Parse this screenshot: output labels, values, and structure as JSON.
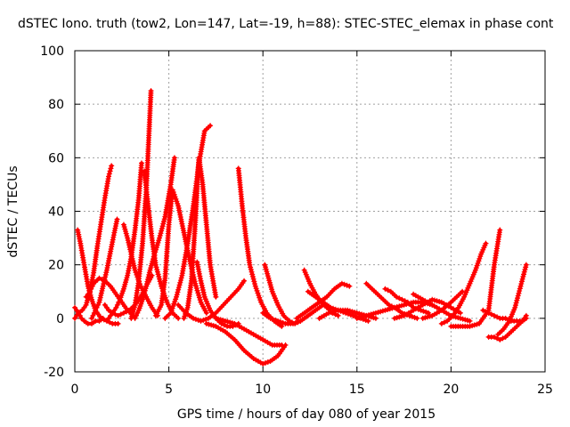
{
  "chart_data": {
    "type": "scatter",
    "title": "dSTEC Iono. truth (tow2, Lon=147, Lat=-19, h=88): STEC-STEC_elemax in phase cont",
    "xlabel": "GPS time / hours of day 080 of year 2015",
    "ylabel": "dSTEC  / TECUs",
    "xlim": [
      0,
      25
    ],
    "ylim": [
      -20,
      100
    ],
    "xticks": [
      0,
      5,
      10,
      15,
      20,
      25
    ],
    "yticks": [
      -20,
      0,
      20,
      40,
      60,
      80,
      100
    ],
    "grid": true,
    "legend": "none",
    "marker": "+",
    "color": "#ff0000",
    "series": [
      {
        "x": [
          0.0,
          0.1,
          0.2,
          0.35,
          0.5,
          0.7,
          0.9,
          1.1,
          1.3,
          1.5
        ],
        "y": [
          4,
          3,
          2,
          0,
          -1,
          -2,
          -2,
          -1,
          -1,
          0
        ]
      },
      {
        "x": [
          0.15,
          0.3,
          0.5,
          0.7,
          0.9,
          1.1,
          1.4,
          1.7,
          2.0,
          2.3
        ],
        "y": [
          33,
          28,
          20,
          12,
          7,
          3,
          0,
          -1,
          -2,
          -2
        ]
      },
      {
        "x": [
          0.0,
          0.2,
          0.4,
          0.6,
          0.8,
          1.0,
          1.2,
          1.4,
          1.6,
          1.8,
          1.95
        ],
        "y": [
          0,
          2,
          3,
          5,
          10,
          17,
          27,
          36,
          45,
          53,
          57
        ]
      },
      {
        "x": [
          0.6,
          0.8,
          1.0,
          1.3,
          1.6,
          1.9,
          2.2,
          2.5,
          2.8,
          3.1
        ],
        "y": [
          8,
          10,
          13,
          15,
          14,
          12,
          9,
          6,
          3,
          1
        ]
      },
      {
        "x": [
          0.9,
          1.1,
          1.3,
          1.5,
          1.7,
          1.9,
          2.1,
          2.25
        ],
        "y": [
          0,
          3,
          6,
          12,
          18,
          25,
          32,
          37
        ]
      },
      {
        "x": [
          1.6,
          1.8,
          2.0,
          2.3,
          2.6,
          2.9,
          3.2,
          3.5,
          3.8,
          4.1
        ],
        "y": [
          5,
          3,
          2,
          1,
          2,
          3,
          5,
          8,
          12,
          16
        ]
      },
      {
        "x": [
          1.8,
          2.0,
          2.2,
          2.4,
          2.6,
          2.8,
          3.0,
          3.2,
          3.4,
          3.55
        ],
        "y": [
          0,
          2,
          4,
          7,
          11,
          16,
          23,
          33,
          45,
          58
        ]
      },
      {
        "x": [
          2.6,
          2.8,
          3.0,
          3.2,
          3.5,
          3.8,
          4.1,
          4.4
        ],
        "y": [
          35,
          30,
          24,
          18,
          12,
          8,
          4,
          1
        ]
      },
      {
        "x": [
          3.0,
          3.2,
          3.4,
          3.6,
          3.8,
          3.95,
          4.05
        ],
        "y": [
          0,
          5,
          14,
          28,
          48,
          70,
          85
        ]
      },
      {
        "x": [
          3.2,
          3.4,
          3.6,
          3.8,
          4.0,
          4.2,
          4.5,
          4.8,
          5.1,
          5.3
        ],
        "y": [
          0,
          3,
          7,
          12,
          18,
          23,
          30,
          38,
          50,
          60
        ]
      },
      {
        "x": [
          3.7,
          3.9,
          4.1,
          4.3,
          4.6,
          4.9,
          5.2,
          5.5
        ],
        "y": [
          55,
          42,
          30,
          20,
          12,
          6,
          2,
          0
        ]
      },
      {
        "x": [
          4.3,
          4.6,
          4.8,
          5.0,
          5.2,
          5.5,
          5.8,
          6.1,
          6.4,
          6.7,
          7.0
        ],
        "y": [
          1,
          5,
          15,
          35,
          48,
          42,
          32,
          22,
          13,
          6,
          2
        ]
      },
      {
        "x": [
          4.8,
          5.1,
          5.4,
          5.7,
          6.0,
          6.3,
          6.6,
          6.9,
          7.2
        ],
        "y": [
          0,
          2,
          8,
          16,
          28,
          42,
          58,
          70,
          72
        ]
      },
      {
        "x": [
          5.8,
          6.0,
          6.2,
          6.4,
          6.6,
          6.8,
          7.0,
          7.2,
          7.5
        ],
        "y": [
          0,
          4,
          14,
          35,
          60,
          50,
          35,
          20,
          8
        ]
      },
      {
        "x": [
          6.5,
          6.7,
          6.9,
          7.2,
          7.5,
          7.8,
          8.1,
          8.4,
          8.7
        ],
        "y": [
          21,
          14,
          8,
          3,
          0,
          -2,
          -3,
          -3,
          -2
        ]
      },
      {
        "x": [
          5.5,
          5.9,
          6.3,
          6.7,
          7.1,
          7.5,
          7.9,
          8.3,
          8.7,
          9.0
        ],
        "y": [
          5,
          2,
          0,
          -1,
          0,
          2,
          5,
          8,
          11,
          14
        ]
      },
      {
        "x": [
          8.7,
          8.9,
          9.1,
          9.3,
          9.6,
          9.9,
          10.2,
          10.6,
          11.0
        ],
        "y": [
          56,
          42,
          30,
          20,
          12,
          6,
          2,
          -1,
          -3
        ]
      },
      {
        "x": [
          7.0,
          7.5,
          8.0,
          8.5,
          9.0,
          9.5,
          10.0,
          10.4,
          10.8,
          11.2
        ],
        "y": [
          -2,
          -3,
          -5,
          -8,
          -12,
          -15,
          -17,
          -16,
          -14,
          -10
        ]
      },
      {
        "x": [
          7.5,
          8.0,
          8.5,
          9.0,
          9.5,
          10.0,
          10.5,
          11.0
        ],
        "y": [
          0,
          -1,
          -2,
          -4,
          -6,
          -8,
          -10,
          -10
        ]
      },
      {
        "x": [
          10.1,
          10.3,
          10.5,
          10.8,
          11.1,
          11.4,
          11.7,
          12.0
        ],
        "y": [
          20,
          15,
          10,
          5,
          1,
          -1,
          -2,
          -1
        ]
      },
      {
        "x": [
          10.0,
          10.4,
          10.8,
          11.2,
          11.6,
          12.0,
          12.4,
          12.8,
          13.2
        ],
        "y": [
          2,
          0,
          -1,
          -2,
          -2,
          -1,
          1,
          3,
          5
        ]
      },
      {
        "x": [
          12.2,
          12.5,
          12.8,
          13.1,
          13.4,
          13.7,
          14.0
        ],
        "y": [
          18,
          13,
          9,
          6,
          4,
          2,
          1
        ]
      },
      {
        "x": [
          11.8,
          12.2,
          12.6,
          13.0,
          13.4,
          13.8,
          14.2,
          14.6
        ],
        "y": [
          0,
          2,
          4,
          6,
          8,
          11,
          13,
          12
        ]
      },
      {
        "x": [
          12.4,
          12.8,
          13.2,
          13.6,
          14.0,
          14.4,
          14.8,
          15.2,
          15.6
        ],
        "y": [
          10,
          8,
          6,
          4,
          3,
          2,
          1,
          0,
          -1
        ]
      },
      {
        "x": [
          13.0,
          13.5,
          14.0,
          14.5,
          15.0,
          15.5,
          16.0
        ],
        "y": [
          0,
          2,
          3,
          3,
          2,
          1,
          0
        ]
      },
      {
        "x": [
          15.5,
          15.8,
          16.1,
          16.4,
          16.7,
          17.0,
          17.4,
          17.8,
          18.2
        ],
        "y": [
          13,
          11,
          9,
          7,
          5,
          4,
          2,
          1,
          0
        ]
      },
      {
        "x": [
          16.5,
          16.8,
          17.1,
          17.4,
          17.7,
          18.0,
          18.4,
          18.8
        ],
        "y": [
          11,
          10,
          8,
          7,
          6,
          4,
          3,
          2
        ]
      },
      {
        "x": [
          15.0,
          15.5,
          16.0,
          16.5,
          17.0,
          17.5,
          18.0,
          18.5,
          19.0
        ],
        "y": [
          0,
          1,
          2,
          3,
          4,
          5,
          6,
          6,
          5
        ]
      },
      {
        "x": [
          17.0,
          17.5,
          18.0,
          18.5,
          19.0,
          19.5,
          20.0,
          20.5
        ],
        "y": [
          0,
          1,
          3,
          5,
          7,
          6,
          4,
          2
        ]
      },
      {
        "x": [
          18.0,
          18.5,
          19.0,
          19.5,
          20.0,
          20.5,
          21.0
        ],
        "y": [
          9,
          7,
          5,
          3,
          1,
          0,
          -1
        ]
      },
      {
        "x": [
          19.5,
          19.8,
          20.1,
          20.4,
          20.7,
          21.0,
          21.3,
          21.6,
          21.85
        ],
        "y": [
          -2,
          -1,
          1,
          4,
          8,
          13,
          18,
          24,
          28
        ]
      },
      {
        "x": [
          18.5,
          19.0,
          19.5,
          20.0,
          20.3,
          20.6
        ],
        "y": [
          0,
          1,
          3,
          6,
          8,
          10
        ]
      },
      {
        "x": [
          20.0,
          20.5,
          21.0,
          21.5,
          22.0,
          22.3,
          22.6
        ],
        "y": [
          -3,
          -3,
          -3,
          -2,
          3,
          20,
          33
        ]
      },
      {
        "x": [
          21.7,
          22.0,
          22.3,
          22.6,
          22.9,
          23.2,
          23.5,
          23.8,
          24.0
        ],
        "y": [
          3,
          2,
          1,
          0,
          0,
          -1,
          -1,
          -1,
          0
        ]
      },
      {
        "x": [
          22.0,
          22.3,
          22.6,
          22.9,
          23.2,
          23.5,
          23.8,
          24.0
        ],
        "y": [
          -7,
          -7,
          -8,
          -7,
          -5,
          -3,
          -1,
          1
        ]
      },
      {
        "x": [
          22.5,
          22.8,
          23.1,
          23.4,
          23.7,
          24.0
        ],
        "y": [
          -6,
          -4,
          -1,
          4,
          12,
          20
        ]
      }
    ]
  }
}
